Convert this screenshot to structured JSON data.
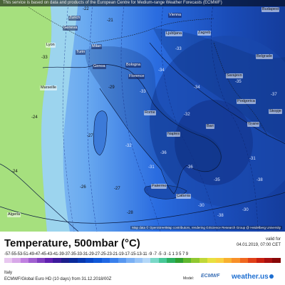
{
  "banner": "This service is based on data and products of the European Centre for Medium-range Weather Forecasts (ECMWF)",
  "attribution": "Map data © OpenStreetMap contributors, rendering GIScience Research Group @ Heidelberg University",
  "legend": {
    "title": "Temperature, 500mbar (°C)",
    "valid_label": "valid for",
    "valid_time": "04.01.2019, 07:00 CET",
    "scale_text": "-57-55-53-51-49-47-45-43-41-39-37-35-33-31-29-27-25-23-21-19-17-15-13-11 -9 -7 -5 -3 -1 1 3 5 7 9",
    "scale_values": [
      -57,
      -55,
      -53,
      -51,
      -49,
      -47,
      -45,
      -43,
      -41,
      -39,
      -37,
      -35,
      -33,
      -31,
      -29,
      -27,
      -25,
      -23,
      -21,
      -19,
      -17,
      -15,
      -13,
      -11,
      -9,
      -7,
      -5,
      -3,
      -1,
      1,
      3,
      5,
      7,
      9
    ],
    "scale_colors": [
      "#e8c8f0",
      "#d8a8e8",
      "#c080e0",
      "#a060d0",
      "#8040c0",
      "#6020b0",
      "#3c1a9c",
      "#1c1f8c",
      "#0a2a9a",
      "#0838b0",
      "#0a48c8",
      "#1058d8",
      "#2068e4",
      "#3a80ec",
      "#5898f0",
      "#7ab0f4",
      "#98c4f6",
      "#b4d8f8",
      "#7ad8c8",
      "#48c898",
      "#2cb060",
      "#30a030",
      "#60b830",
      "#90c830",
      "#c0d838",
      "#e8e040",
      "#f8d040",
      "#f8b030",
      "#f89028",
      "#f06820",
      "#e04018",
      "#c82010",
      "#a81010",
      "#880808"
    ],
    "region": "Italy",
    "run_info": "ECMWF/Global Euro HD (10 days) from 31.12.2018/00Z",
    "model_label": "Model:",
    "model_brand": "ECMWF",
    "site_brand": "weather.us"
  },
  "cities": [
    {
      "name": "Ljubljana",
      "tone": "l"
    },
    {
      "name": "Zagreb",
      "tone": "l"
    },
    {
      "name": "Budapest",
      "tone": "l"
    },
    {
      "name": "Belgrade",
      "tone": "l"
    },
    {
      "name": "Sarajevo",
      "tone": "l"
    },
    {
      "name": "Podgorica",
      "tone": "l"
    },
    {
      "name": "Skopje",
      "tone": "l"
    },
    {
      "name": "Tirane",
      "tone": "l"
    },
    {
      "name": "Bari",
      "tone": "l"
    },
    {
      "name": "Naples",
      "tone": "l"
    },
    {
      "name": "Rome",
      "tone": "l"
    },
    {
      "name": "Bologna",
      "tone": "d"
    },
    {
      "name": "Genoa",
      "tone": "d"
    },
    {
      "name": "Milan",
      "tone": "d"
    },
    {
      "name": "Turin",
      "tone": "d"
    },
    {
      "name": "Lyon",
      "tone": "l"
    },
    {
      "name": "Marseille",
      "tone": "l"
    },
    {
      "name": "Palermo",
      "tone": "l"
    },
    {
      "name": "Catania",
      "tone": "l"
    },
    {
      "name": "Algeria",
      "tone": "l"
    },
    {
      "name": "Zurich",
      "tone": "d"
    },
    {
      "name": "Vienna",
      "tone": "d"
    },
    {
      "name": "Geneva",
      "tone": "d"
    },
    {
      "name": "Florence",
      "tone": "d"
    }
  ],
  "isotherms": [
    "-33",
    "-24",
    "-24",
    "-27",
    "-26",
    "-27",
    "-28",
    "-36",
    "-36",
    "-35",
    "-35",
    "-34",
    "-34",
    "-33",
    "-32",
    "-31",
    "-30",
    "-30",
    "-38",
    "-38",
    "-21",
    "-22",
    "-31",
    "-32",
    "-33",
    "-29",
    "-37"
  ]
}
